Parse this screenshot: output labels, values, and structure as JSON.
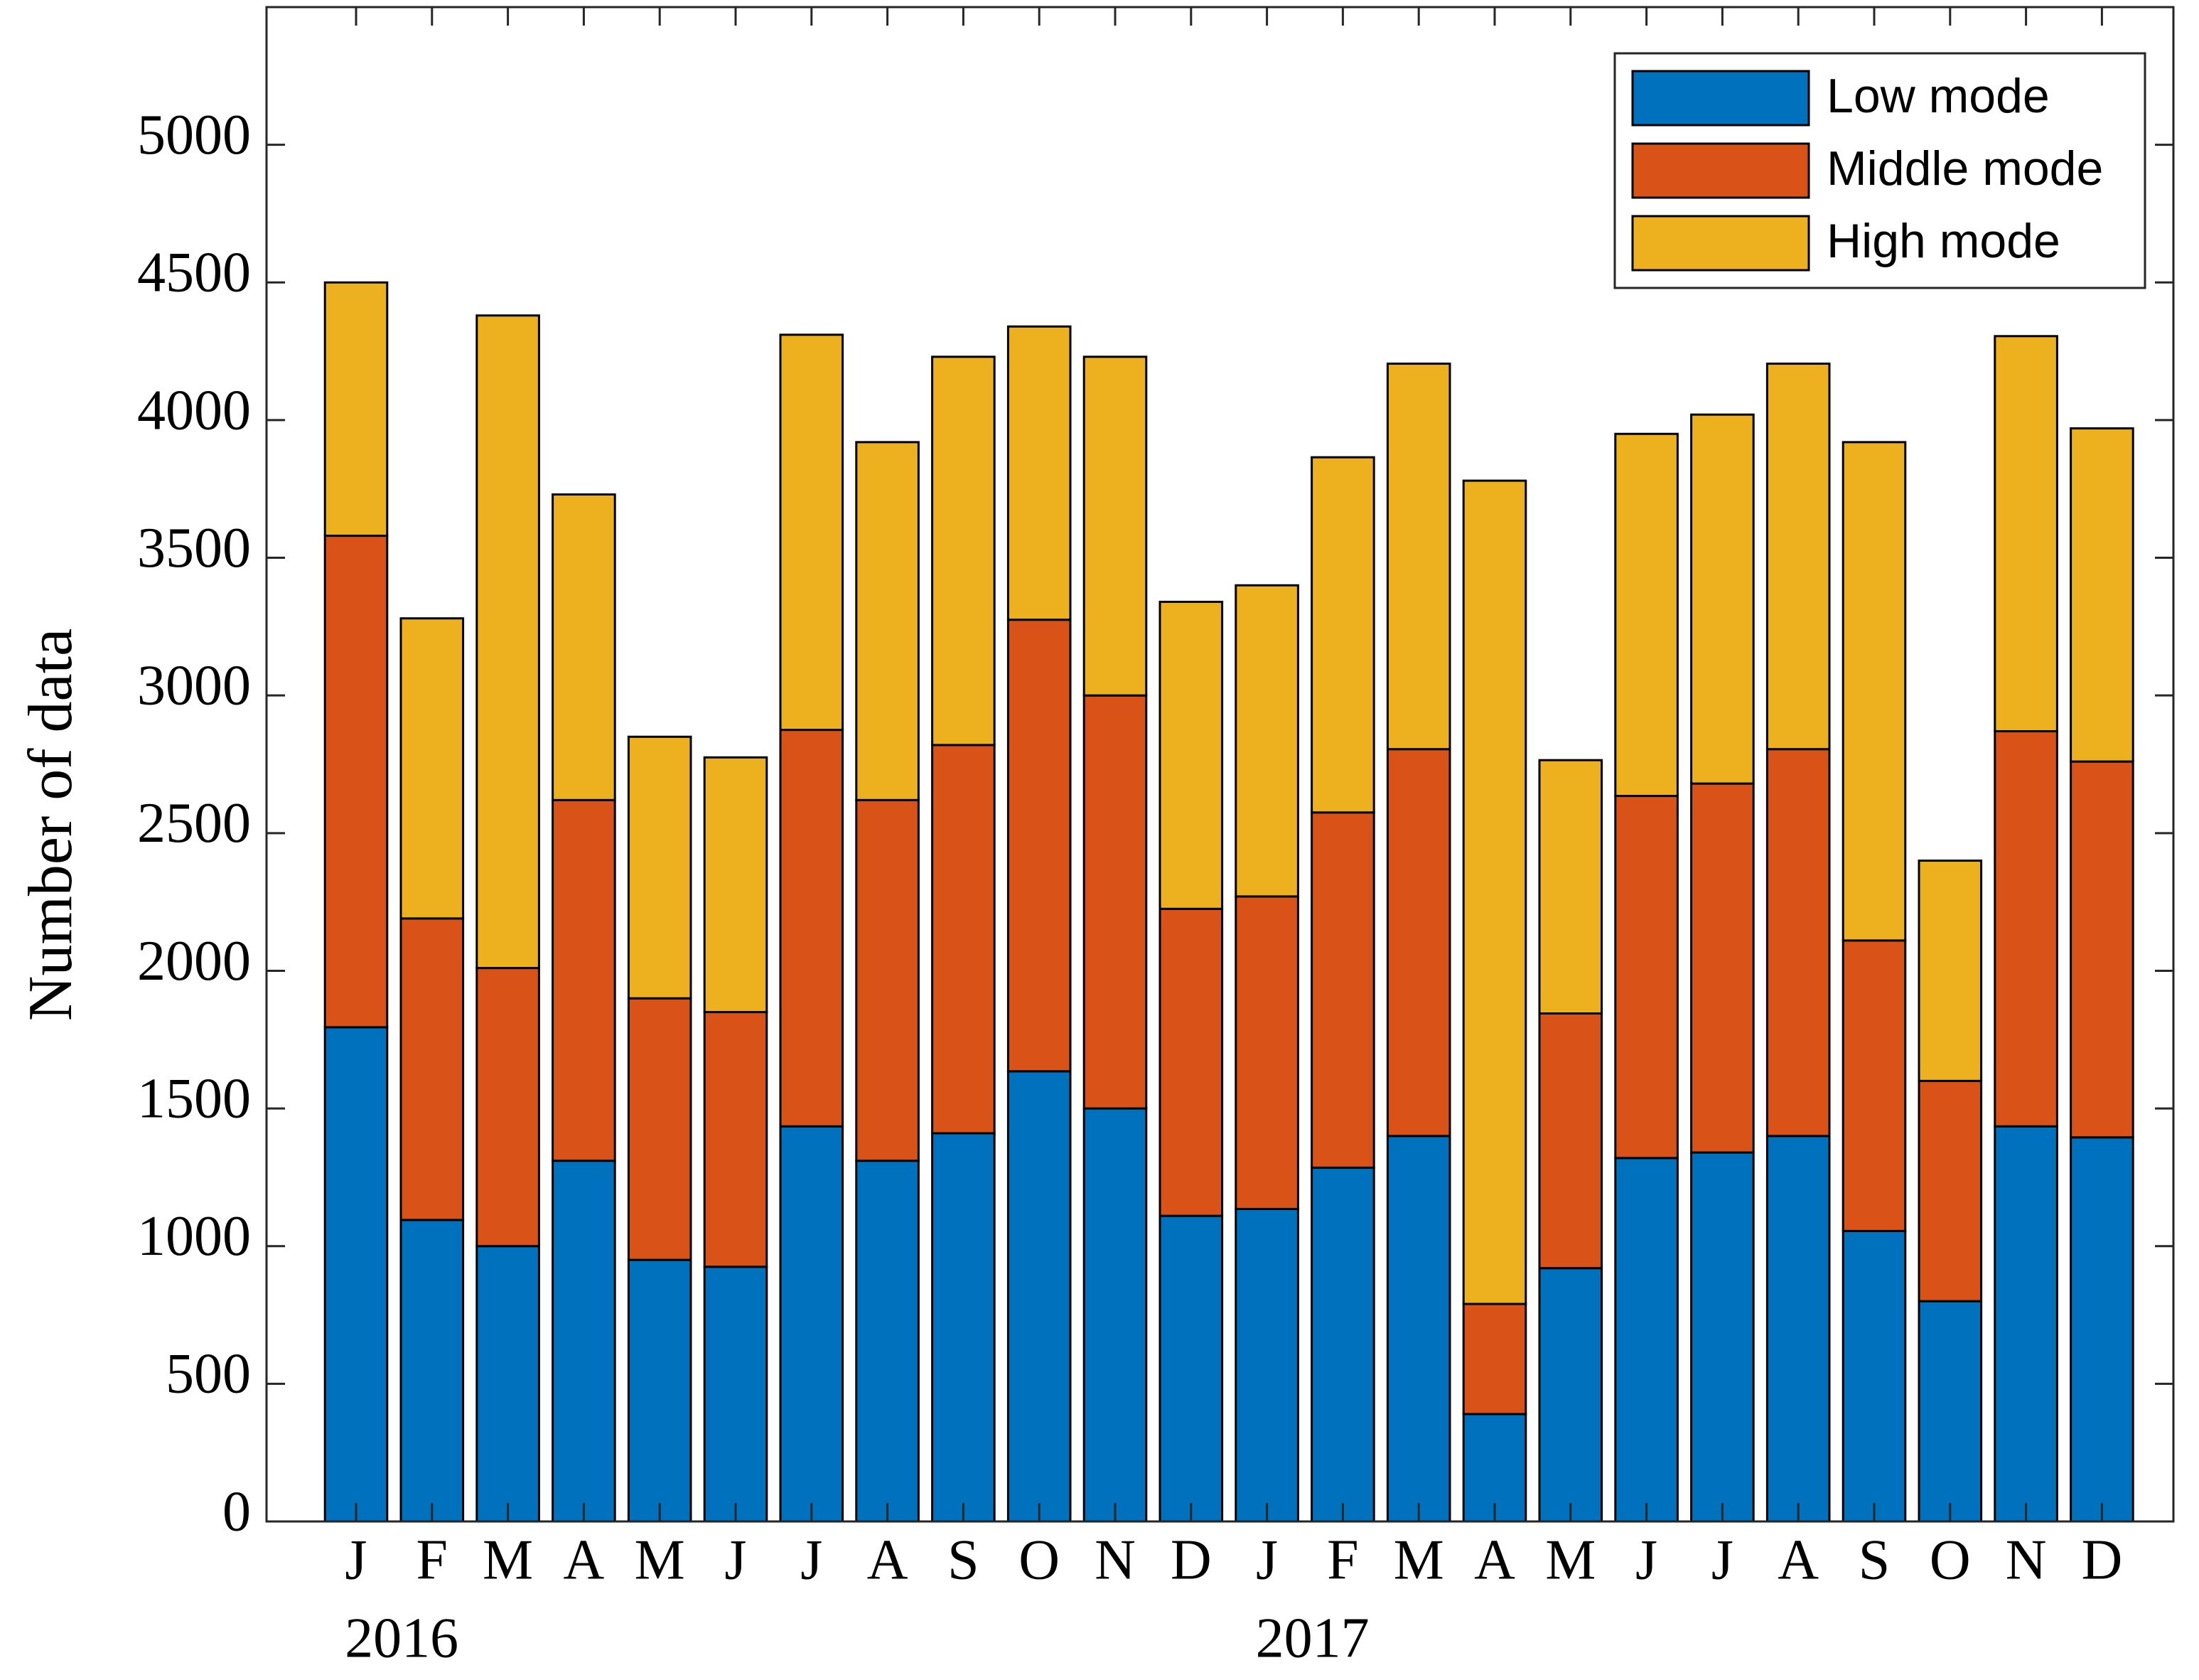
{
  "chart_data": {
    "type": "stacked_bar",
    "ylabel": "Number of data",
    "categories": [
      "J",
      "F",
      "M",
      "A",
      "M",
      "J",
      "J",
      "A",
      "S",
      "O",
      "N",
      "D",
      "J",
      "F",
      "M",
      "A",
      "M",
      "J",
      "J",
      "A",
      "S",
      "O",
      "N",
      "D"
    ],
    "year_labels": [
      "2016",
      "2017"
    ],
    "series": [
      {
        "name": "Low mode",
        "color": "#0072BD",
        "values": [
          1795,
          1095,
          1000,
          1310,
          950,
          925,
          1435,
          1310,
          1410,
          1635,
          1500,
          1110,
          1135,
          1285,
          1400,
          390,
          920,
          1320,
          1340,
          1400,
          1055,
          800,
          1435,
          1395
        ]
      },
      {
        "name": "Middle mode",
        "color": "#D95319",
        "values": [
          1785,
          1095,
          1010,
          1310,
          950,
          925,
          1440,
          1310,
          1410,
          1640,
          1500,
          1115,
          1135,
          1290,
          1405,
          400,
          925,
          1315,
          1340,
          1405,
          1055,
          800,
          1435,
          1365
        ]
      },
      {
        "name": "High mode",
        "color": "#EDB120",
        "values": [
          920,
          1090,
          2370,
          1110,
          950,
          925,
          1435,
          1300,
          1410,
          1065,
          1230,
          1115,
          1130,
          1290,
          1400,
          2990,
          920,
          1315,
          1340,
          1400,
          1810,
          800,
          1435,
          1210
        ]
      }
    ],
    "ylim": [
      0,
      5500
    ],
    "yticks": [
      0,
      500,
      1000,
      1500,
      2000,
      2500,
      3000,
      3500,
      4000,
      4500,
      5000
    ],
    "legend": "northeast"
  }
}
